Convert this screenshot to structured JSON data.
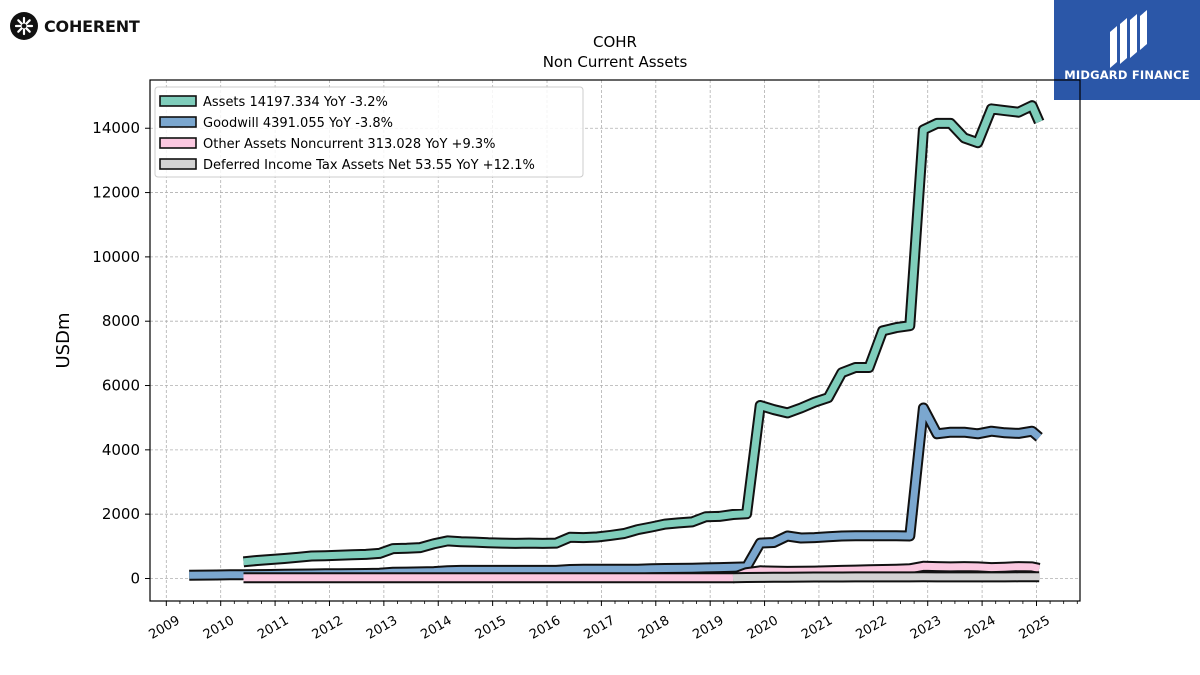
{
  "brand_left": {
    "name": "COHERENT"
  },
  "brand_right": {
    "name": "MIDGARD FINANCE"
  },
  "chart_data": {
    "type": "line",
    "title": "COHR",
    "subtitle": "Non Current  Assets",
    "ylabel": "USDm",
    "xlim": [
      2008.7,
      2025.8
    ],
    "ylim": [
      -700,
      15500
    ],
    "yticks": [
      0,
      2000,
      4000,
      6000,
      8000,
      10000,
      12000,
      14000
    ],
    "xticks": [
      "2009",
      "2010",
      "2011",
      "2012",
      "2013",
      "2014",
      "2015",
      "2016",
      "2017",
      "2018",
      "2019",
      "2020",
      "2021",
      "2022",
      "2023",
      "2024",
      "2025"
    ],
    "grid": true,
    "legend_position": "top-left",
    "series": [
      {
        "name": "Assets",
        "legend": "Assets  14197.334 YoY -3.2%",
        "color": "#7fcdbb",
        "x": [
          2010.42,
          2010.67,
          2010.92,
          2011.17,
          2011.42,
          2011.67,
          2011.92,
          2012.17,
          2012.42,
          2012.67,
          2012.92,
          2013.17,
          2013.42,
          2013.67,
          2013.92,
          2014.17,
          2014.42,
          2014.67,
          2014.92,
          2015.17,
          2015.42,
          2015.67,
          2015.92,
          2016.17,
          2016.42,
          2016.67,
          2016.92,
          2017.17,
          2017.42,
          2017.67,
          2017.92,
          2018.17,
          2018.42,
          2018.67,
          2018.92,
          2019.17,
          2019.42,
          2019.67,
          2019.92,
          2020.17,
          2020.42,
          2020.67,
          2020.92,
          2021.17,
          2021.42,
          2021.67,
          2021.92,
          2022.17,
          2022.42,
          2022.67,
          2022.92,
          2023.17,
          2023.42,
          2023.67,
          2023.92,
          2024.17,
          2024.42,
          2024.67,
          2024.92,
          2025.05
        ],
        "y": [
          520,
          560,
          590,
          620,
          660,
          700,
          710,
          720,
          740,
          750,
          780,
          930,
          940,
          960,
          1080,
          1170,
          1140,
          1130,
          1110,
          1100,
          1090,
          1100,
          1090,
          1100,
          1280,
          1270,
          1290,
          1340,
          1400,
          1520,
          1600,
          1690,
          1730,
          1760,
          1920,
          1930,
          1990,
          2010,
          5380,
          5250,
          5150,
          5300,
          5480,
          5620,
          6400,
          6560,
          6560,
          7700,
          7800,
          7860,
          13950,
          14150,
          14150,
          13700,
          13550,
          14600,
          14550,
          14500,
          14700,
          14197.334
        ]
      },
      {
        "name": "Goodwill",
        "legend": "Goodwill  4391.055 YoY -3.8%",
        "color": "#7ba7cf",
        "x": [
          2009.42,
          2009.67,
          2009.92,
          2010.17,
          2010.42,
          2010.67,
          2010.92,
          2011.17,
          2011.42,
          2011.67,
          2011.92,
          2012.17,
          2012.42,
          2012.67,
          2012.92,
          2013.17,
          2013.42,
          2013.67,
          2013.92,
          2014.17,
          2014.42,
          2014.67,
          2014.92,
          2015.17,
          2015.42,
          2015.67,
          2015.92,
          2016.17,
          2016.42,
          2016.67,
          2016.92,
          2017.17,
          2017.42,
          2017.67,
          2017.92,
          2018.17,
          2018.42,
          2018.67,
          2018.92,
          2019.17,
          2019.42,
          2019.67,
          2019.92,
          2020.17,
          2020.42,
          2020.67,
          2020.92,
          2021.17,
          2021.42,
          2021.67,
          2021.92,
          2022.17,
          2022.42,
          2022.67,
          2022.92,
          2023.17,
          2023.42,
          2023.67,
          2023.92,
          2024.17,
          2024.42,
          2024.67,
          2024.92,
          2025.05
        ],
        "y": [
          100,
          105,
          110,
          115,
          118,
          120,
          125,
          130,
          135,
          140,
          145,
          150,
          152,
          155,
          165,
          195,
          200,
          205,
          215,
          240,
          250,
          250,
          250,
          250,
          250,
          250,
          250,
          250,
          280,
          285,
          285,
          285,
          285,
          290,
          300,
          310,
          315,
          320,
          330,
          340,
          350,
          360,
          1100,
          1120,
          1320,
          1260,
          1270,
          1300,
          1320,
          1330,
          1330,
          1330,
          1330,
          1320,
          5300,
          4500,
          4550,
          4550,
          4500,
          4580,
          4530,
          4510,
          4580,
          4391.055
        ]
      },
      {
        "name": "Other Assets Noncurrent",
        "legend": "Other Assets Noncurrent  313.028 YoY +9.3%",
        "color": "#fbc8e0",
        "x": [
          2010.42,
          2010.67,
          2010.92,
          2011.17,
          2011.42,
          2011.67,
          2011.92,
          2012.17,
          2012.42,
          2012.67,
          2012.92,
          2013.17,
          2013.42,
          2013.67,
          2013.92,
          2014.17,
          2014.42,
          2014.67,
          2014.92,
          2015.17,
          2015.42,
          2015.67,
          2015.92,
          2016.17,
          2016.42,
          2016.67,
          2016.92,
          2017.17,
          2017.42,
          2017.67,
          2017.92,
          2018.17,
          2018.42,
          2018.67,
          2018.92,
          2019.17,
          2019.42,
          2019.67,
          2019.92,
          2020.17,
          2020.42,
          2020.67,
          2020.92,
          2021.17,
          2021.42,
          2021.67,
          2021.92,
          2022.17,
          2022.42,
          2022.67,
          2022.92,
          2023.17,
          2023.42,
          2023.67,
          2023.92,
          2024.17,
          2024.42,
          2024.67,
          2024.92,
          2025.05
        ],
        "y": [
          20,
          20,
          20,
          20,
          20,
          20,
          20,
          20,
          20,
          20,
          20,
          20,
          20,
          20,
          20,
          20,
          20,
          20,
          20,
          20,
          20,
          20,
          20,
          20,
          20,
          20,
          20,
          20,
          20,
          20,
          20,
          20,
          20,
          20,
          20,
          20,
          20,
          180,
          240,
          230,
          220,
          225,
          230,
          240,
          250,
          260,
          270,
          280,
          290,
          300,
          380,
          370,
          360,
          370,
          360,
          340,
          350,
          370,
          360,
          313.028
        ]
      },
      {
        "name": "Deferred Income Tax Assets Net",
        "legend": "Deferred Income Tax Assets Net  53.55 YoY +12.1%",
        "color": "#d2d2d2",
        "x": [
          2019.42,
          2019.67,
          2019.92,
          2020.17,
          2020.42,
          2020.67,
          2020.92,
          2021.17,
          2021.42,
          2021.67,
          2021.92,
          2022.17,
          2022.42,
          2022.67,
          2022.92,
          2023.17,
          2023.42,
          2023.67,
          2023.92,
          2024.17,
          2024.42,
          2024.67,
          2024.92,
          2025.05
        ],
        "y": [
          20,
          30,
          35,
          40,
          40,
          42,
          45,
          45,
          45,
          48,
          50,
          50,
          50,
          50,
          52,
          50,
          50,
          50,
          50,
          50,
          50,
          52,
          52,
          53.55
        ]
      }
    ]
  }
}
